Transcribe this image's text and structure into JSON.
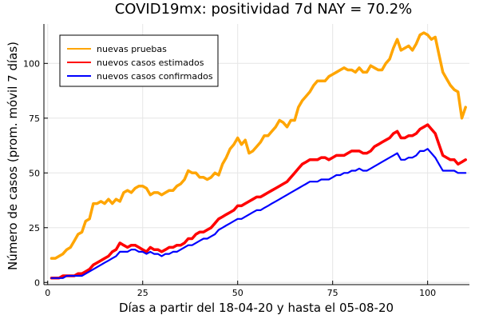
{
  "chart_data": {
    "type": "line",
    "title": "COVID19mx: positividad 7d NAY = 70.2%",
    "xlabel": "Días a partir del 18-04-20 y hasta el 05-08-20",
    "ylabel": "Número de casos (prom. móvil 7 días)",
    "xlim": [
      -1,
      111
    ],
    "ylim": [
      -1,
      118
    ],
    "xticks": [
      0,
      25,
      50,
      75,
      100
    ],
    "yticks": [
      0,
      25,
      50,
      75,
      100
    ],
    "grid": true,
    "legend_position": "top-left",
    "x": [
      1,
      2,
      3,
      4,
      5,
      6,
      7,
      8,
      9,
      10,
      11,
      12,
      13,
      14,
      15,
      16,
      17,
      18,
      19,
      20,
      21,
      22,
      23,
      24,
      25,
      26,
      27,
      28,
      29,
      30,
      31,
      32,
      33,
      34,
      35,
      36,
      37,
      38,
      39,
      40,
      41,
      42,
      43,
      44,
      45,
      46,
      47,
      48,
      49,
      50,
      51,
      52,
      53,
      54,
      55,
      56,
      57,
      58,
      59,
      60,
      61,
      62,
      63,
      64,
      65,
      66,
      67,
      68,
      69,
      70,
      71,
      72,
      73,
      74,
      75,
      76,
      77,
      78,
      79,
      80,
      81,
      82,
      83,
      84,
      85,
      86,
      87,
      88,
      89,
      90,
      91,
      92,
      93,
      94,
      95,
      96,
      97,
      98,
      99,
      100,
      101,
      102,
      103,
      104,
      105,
      106,
      107,
      108,
      109,
      110
    ],
    "series": [
      {
        "name": "nuevas pruebas",
        "color": "#FFA500",
        "values": [
          11,
          11,
          12,
          13,
          15,
          16,
          19,
          22,
          23,
          28,
          29,
          36,
          36,
          37,
          36,
          38,
          36,
          38,
          37,
          41,
          42,
          41,
          43,
          44,
          44,
          43,
          40,
          41,
          41,
          40,
          41,
          42,
          42,
          44,
          45,
          47,
          51,
          50,
          50,
          48,
          48,
          47,
          48,
          50,
          49,
          54,
          57,
          61,
          63,
          66,
          63,
          65,
          59,
          60,
          62,
          64,
          67,
          67,
          69,
          71,
          74,
          73,
          71,
          74,
          74,
          80,
          83,
          85,
          87,
          90,
          92,
          92,
          92,
          94,
          95,
          96,
          97,
          98,
          97,
          97,
          96,
          98,
          96,
          96,
          99,
          98,
          97,
          97,
          100,
          102,
          107,
          111,
          106,
          107,
          108,
          106,
          109,
          113,
          114,
          113,
          111,
          112,
          104,
          96,
          93,
          90,
          88,
          87,
          75,
          80
        ]
      },
      {
        "name": "nuevos casos estimados",
        "color": "#FF0000",
        "values": [
          2,
          2,
          2,
          3,
          3,
          3,
          3,
          4,
          4,
          5,
          6,
          8,
          9,
          10,
          11,
          12,
          14,
          15,
          18,
          17,
          16,
          17,
          17,
          16,
          15,
          14,
          16,
          15,
          15,
          14,
          15,
          16,
          16,
          17,
          17,
          18,
          20,
          20,
          22,
          23,
          23,
          24,
          25,
          27,
          29,
          30,
          31,
          32,
          33,
          35,
          35,
          36,
          37,
          38,
          39,
          39,
          40,
          41,
          42,
          43,
          44,
          45,
          46,
          48,
          50,
          52,
          54,
          55,
          56,
          56,
          56,
          57,
          57,
          56,
          57,
          58,
          58,
          58,
          59,
          60,
          60,
          60,
          59,
          59,
          60,
          62,
          63,
          64,
          65,
          66,
          68,
          69,
          66,
          66,
          67,
          67,
          68,
          70,
          71,
          72,
          70,
          68,
          63,
          58,
          57,
          56,
          56,
          54,
          55,
          56
        ]
      },
      {
        "name": "nuevos casos confirmados",
        "color": "#0000FF",
        "values": [
          2,
          2,
          2,
          2,
          3,
          3,
          3,
          3,
          3,
          4,
          5,
          6,
          7,
          8,
          9,
          10,
          11,
          12,
          14,
          14,
          14,
          15,
          15,
          14,
          14,
          13,
          14,
          13,
          13,
          12,
          13,
          13,
          14,
          14,
          15,
          16,
          17,
          17,
          18,
          19,
          20,
          20,
          21,
          22,
          24,
          25,
          26,
          27,
          28,
          29,
          29,
          30,
          31,
          32,
          33,
          33,
          34,
          35,
          36,
          37,
          38,
          39,
          40,
          41,
          42,
          43,
          44,
          45,
          46,
          46,
          46,
          47,
          47,
          47,
          48,
          49,
          49,
          50,
          50,
          51,
          51,
          52,
          51,
          51,
          52,
          53,
          54,
          55,
          56,
          57,
          58,
          59,
          56,
          56,
          57,
          57,
          58,
          60,
          60,
          61,
          59,
          57,
          54,
          51,
          51,
          51,
          51,
          50,
          50,
          50
        ]
      }
    ]
  }
}
